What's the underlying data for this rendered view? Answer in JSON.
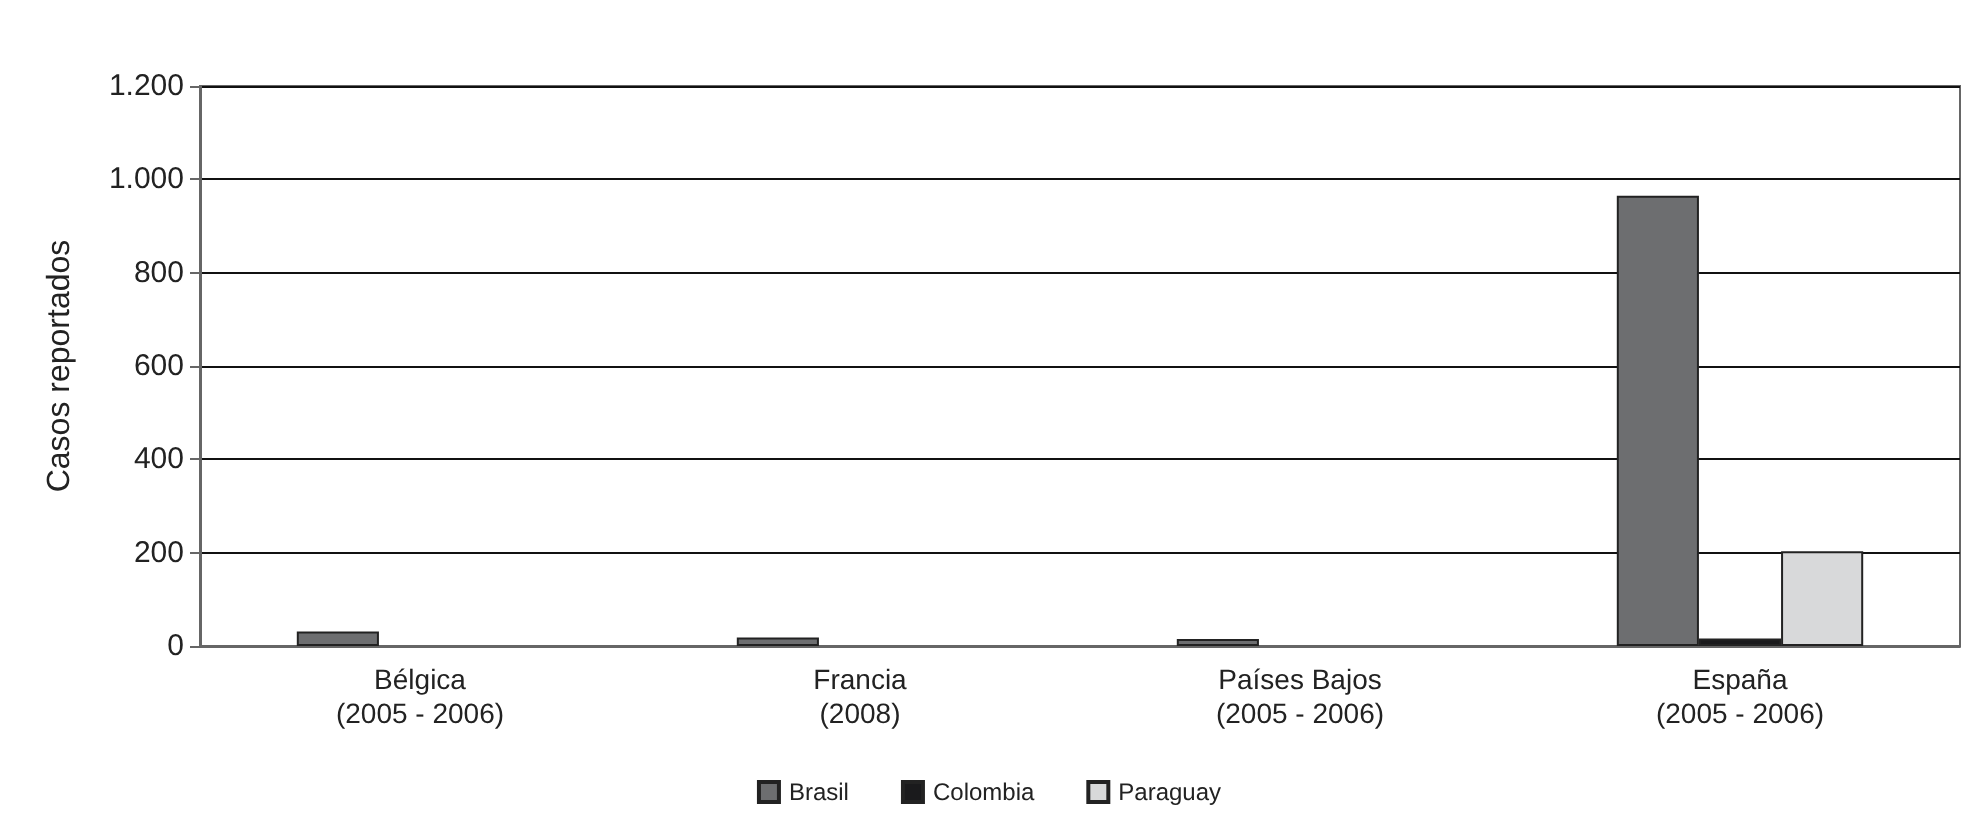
{
  "chart_data": {
    "type": "bar",
    "ylabel": "Casos reportados",
    "categories": [
      "Bélgica\n(2005 - 2006)",
      "Francia\n(2008)",
      "Países Bajos\n(2005 - 2006)",
      "España\n(2005 - 2006)"
    ],
    "series": [
      {
        "name": "Brasil",
        "color": "#6d6e70",
        "values": [
          31,
          18,
          15,
          965
        ]
      },
      {
        "name": "Colombia",
        "color": "#1a1a1c",
        "values": [
          null,
          null,
          null,
          16
        ]
      },
      {
        "name": "Paraguay",
        "color": "#d8d9da",
        "values": [
          null,
          null,
          null,
          203
        ]
      }
    ],
    "ylim": [
      0,
      1200
    ],
    "yticks": [
      0,
      {
        "value": 200,
        "label": "200"
      },
      {
        "value": 400,
        "label": "400"
      },
      {
        "value": 600,
        "label": "600"
      },
      {
        "value": 800,
        "label": "800"
      },
      {
        "value": 1000,
        "label": "1.000"
      },
      {
        "value": 1200,
        "label": "1.200"
      }
    ],
    "grid": "y",
    "legend": "bottom"
  }
}
